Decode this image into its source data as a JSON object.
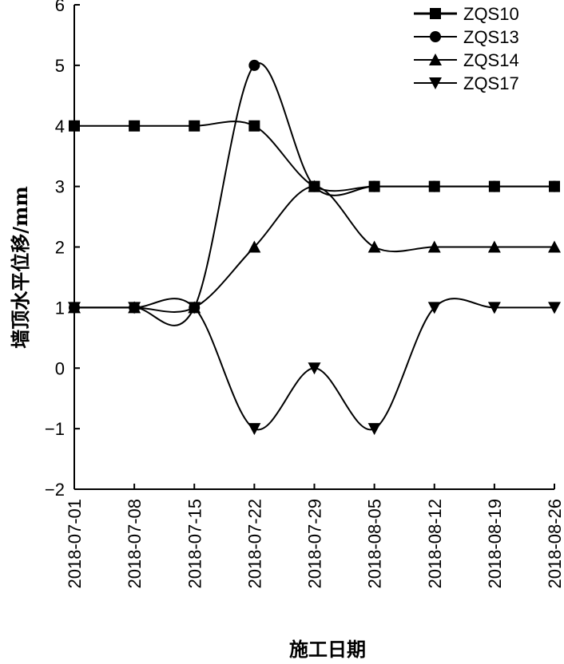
{
  "chart_data": {
    "type": "line",
    "xlabel": "施工日期",
    "ylabel": "墙顶水平位移/mm",
    "categories": [
      "2018-07-01",
      "2018-07-08",
      "2018-07-15",
      "2018-07-22",
      "2018-07-29",
      "2018-08-05",
      "2018-08-12",
      "2018-08-19",
      "2018-08-26"
    ],
    "ylim": [
      -2,
      6
    ],
    "yticks": [
      "−2",
      "−1",
      "0",
      "1",
      "2",
      "3",
      "4",
      "5",
      "6"
    ],
    "yticks_values": [
      -2,
      -1,
      0,
      1,
      2,
      3,
      4,
      5,
      6
    ],
    "smooth": true,
    "legend_position": "top-right",
    "series": [
      {
        "name": "ZQS10",
        "marker": "square",
        "values": [
          4,
          4,
          4,
          4,
          3,
          3,
          3,
          3,
          3
        ]
      },
      {
        "name": "ZQS13",
        "marker": "circle",
        "values": [
          1,
          1,
          1,
          5,
          3,
          3,
          3,
          3,
          3
        ]
      },
      {
        "name": "ZQS14",
        "marker": "triangle-up",
        "values": [
          1,
          1,
          1,
          2,
          3,
          2,
          2,
          2,
          2
        ]
      },
      {
        "name": "ZQS17",
        "marker": "triangle-down",
        "values": [
          1,
          1,
          1,
          -1,
          0,
          -1,
          1,
          1,
          1
        ]
      }
    ]
  }
}
